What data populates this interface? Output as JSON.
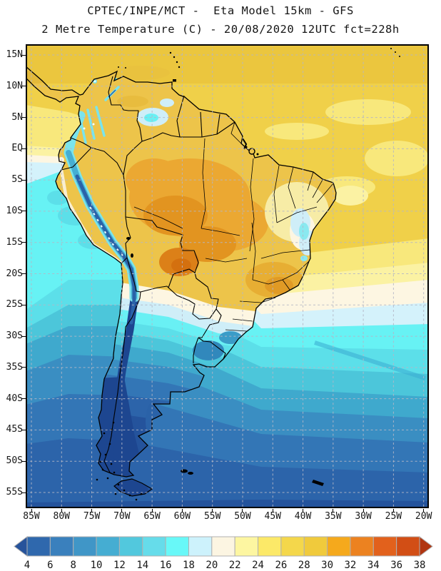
{
  "title": {
    "line1": "CPTEC/INPE/MCT -  Eta Model 15km - GFS",
    "line2": "2 Metre Temperature (C) - 20/08/2020 12UTC fct=228h"
  },
  "map": {
    "lat_labels": [
      "15N",
      "10N",
      "5N",
      "EQ",
      "5S",
      "10S",
      "15S",
      "20S",
      "25S",
      "30S",
      "35S",
      "40S",
      "45S",
      "50S",
      "55S"
    ],
    "lon_labels": [
      "85W",
      "80W",
      "75W",
      "70W",
      "65W",
      "60W",
      "55W",
      "50W",
      "45W",
      "40W",
      "35W",
      "30W",
      "25W",
      "20W"
    ],
    "grid_color": "#b4b7c6"
  },
  "colorbar": {
    "units": "C",
    "tick_labels": [
      "4",
      "6",
      "8",
      "10",
      "12",
      "14",
      "16",
      "18",
      "20",
      "22",
      "24",
      "26",
      "28",
      "30",
      "32",
      "34",
      "36",
      "38"
    ],
    "scale": [
      {
        "range": "<4",
        "color": "#27539b"
      },
      {
        "range": "4-6",
        "color": "#2f68ad"
      },
      {
        "range": "6-8",
        "color": "#3a80bd"
      },
      {
        "range": "8-10",
        "color": "#4096c7"
      },
      {
        "range": "10-12",
        "color": "#45add2"
      },
      {
        "range": "12-14",
        "color": "#52c8dd"
      },
      {
        "range": "14-16",
        "color": "#66dcea"
      },
      {
        "range": "16-18",
        "color": "#68f8f8"
      },
      {
        "range": "18-20",
        "color": "#cdf2fc"
      },
      {
        "range": "20-22",
        "color": "#fcf5e2"
      },
      {
        "range": "22-24",
        "color": "#fdf6a1"
      },
      {
        "range": "24-26",
        "color": "#fce968"
      },
      {
        "range": "26-28",
        "color": "#f4d74b"
      },
      {
        "range": "28-30",
        "color": "#f0ca3c"
      },
      {
        "range": "30-32",
        "color": "#f5a91c"
      },
      {
        "range": "32-34",
        "color": "#ec8220"
      },
      {
        "range": "34-36",
        "color": "#e2611c"
      },
      {
        "range": "36-38",
        "color": "#d24e15"
      },
      {
        "range": ">38",
        "color": "#b03511"
      }
    ]
  }
}
